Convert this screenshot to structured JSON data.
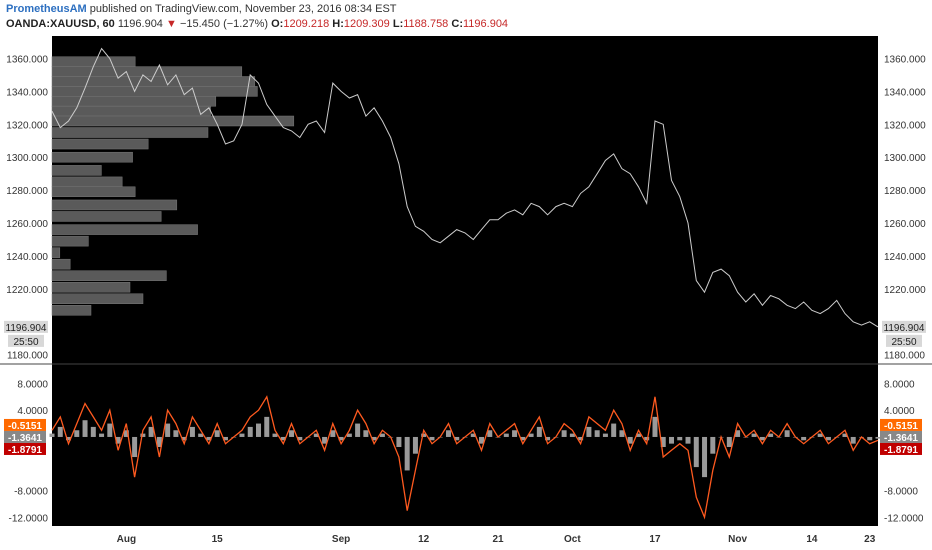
{
  "header": {
    "author": "PrometheusAM",
    "published_text": "published on TradingView.com, November 23, 2016 08:34 EST",
    "symbol": "OANDA:XAUUSD, 60",
    "last": "1196.904",
    "change": "−15.450 (−1.27%)",
    "down_arrow": "▼",
    "o_label": "O:",
    "o_value": "1209.218",
    "h_label": "H:",
    "h_value": "1209.309",
    "l_label": "L:",
    "l_value": "1188.758",
    "c_label": "C:",
    "c_value": "1196.904"
  },
  "colors": {
    "background": "#000000",
    "price_line": "#cccccc",
    "volume_profile": "#5a5a5a",
    "osc_line": "#ff5a1f",
    "osc_hist": "#9a9a9a",
    "badge_orange": "#ff6a00",
    "badge_gray": "#888888",
    "badge_red": "#c00000"
  },
  "chart_data": {
    "type": "line",
    "price_panel": {
      "yticks": [
        "1360.000",
        "1340.000",
        "1320.000",
        "1300.000",
        "1280.000",
        "1260.000",
        "1240.000",
        "1220.000",
        "1180.000"
      ],
      "ylim": [
        1178,
        1370
      ],
      "last_price_label": "1196.904",
      "countdown_label": "25:50",
      "xlim": [
        0,
        100
      ],
      "series": [
        {
          "x": [
            0,
            1,
            2,
            3,
            4,
            5,
            6,
            7,
            8,
            9,
            10,
            11,
            12,
            13,
            14,
            15,
            16,
            17,
            18,
            19,
            20,
            21,
            22,
            23,
            24,
            25,
            26,
            27,
            28,
            29,
            30,
            31,
            32,
            33,
            34,
            35,
            36,
            37,
            38,
            39,
            40,
            41,
            42,
            43,
            44,
            45,
            46,
            47,
            48,
            49,
            50,
            51,
            52,
            53,
            54,
            55,
            56,
            57,
            58,
            59,
            60,
            61,
            62,
            63,
            64,
            65,
            66,
            67,
            68,
            69,
            70,
            71,
            72,
            73,
            74,
            75,
            76,
            77,
            78,
            79,
            80,
            81,
            82,
            83,
            84,
            85,
            86,
            87,
            88,
            89,
            90,
            91,
            92,
            93,
            94,
            95,
            96,
            97,
            98,
            99,
            100
          ],
          "y": [
            1328,
            1318,
            1322,
            1330,
            1342,
            1355,
            1366,
            1360,
            1348,
            1352,
            1340,
            1350,
            1346,
            1356,
            1344,
            1350,
            1338,
            1342,
            1326,
            1330,
            1320,
            1308,
            1310,
            1320,
            1350,
            1345,
            1332,
            1325,
            1318,
            1316,
            1312,
            1320,
            1322,
            1315,
            1345,
            1340,
            1336,
            1338,
            1325,
            1330,
            1322,
            1312,
            1296,
            1270,
            1258,
            1255,
            1250,
            1248,
            1252,
            1256,
            1254,
            1250,
            1256,
            1262,
            1262,
            1266,
            1268,
            1265,
            1272,
            1270,
            1265,
            1270,
            1272,
            1270,
            1278,
            1282,
            1290,
            1298,
            1302,
            1293,
            1290,
            1282,
            1272,
            1322,
            1320,
            1286,
            1276,
            1260,
            1225,
            1218,
            1230,
            1232,
            1228,
            1218,
            1212,
            1217,
            1210,
            1216,
            1214,
            1210,
            1208,
            1212,
            1207,
            1205,
            1208,
            1213,
            1205,
            1200,
            1198,
            1200,
            1196.9
          ]
        }
      ],
      "volume_profile": [
        {
          "price": 1358,
          "length": 0.32
        },
        {
          "price": 1352,
          "length": 0.73
        },
        {
          "price": 1346,
          "length": 0.78
        },
        {
          "price": 1340,
          "length": 0.79
        },
        {
          "price": 1334,
          "length": 0.63
        },
        {
          "price": 1328,
          "length": 0.61
        },
        {
          "price": 1322,
          "length": 0.93
        },
        {
          "price": 1315,
          "length": 0.6
        },
        {
          "price": 1308,
          "length": 0.37
        },
        {
          "price": 1300,
          "length": 0.31
        },
        {
          "price": 1292,
          "length": 0.19
        },
        {
          "price": 1285,
          "length": 0.27
        },
        {
          "price": 1279,
          "length": 0.32
        },
        {
          "price": 1271,
          "length": 0.48
        },
        {
          "price": 1264,
          "length": 0.42
        },
        {
          "price": 1256,
          "length": 0.56
        },
        {
          "price": 1249,
          "length": 0.14
        },
        {
          "price": 1242,
          "length": 0.03
        },
        {
          "price": 1235,
          "length": 0.07
        },
        {
          "price": 1228,
          "length": 0.44
        },
        {
          "price": 1221,
          "length": 0.3
        },
        {
          "price": 1214,
          "length": 0.35
        },
        {
          "price": 1207,
          "length": 0.15
        }
      ]
    },
    "oscillator_panel": {
      "yticks": [
        "8.0000",
        "4.0000",
        "-8.0000",
        "-12.0000"
      ],
      "ylim": [
        -13,
        10
      ],
      "badges": [
        "-0.5151",
        "-1.3641",
        "-1.8791"
      ],
      "x": [
        0,
        1,
        2,
        3,
        4,
        5,
        6,
        7,
        8,
        9,
        10,
        11,
        12,
        13,
        14,
        15,
        16,
        17,
        18,
        19,
        20,
        21,
        22,
        23,
        24,
        25,
        26,
        27,
        28,
        29,
        30,
        31,
        32,
        33,
        34,
        35,
        36,
        37,
        38,
        39,
        40,
        41,
        42,
        43,
        44,
        45,
        46,
        47,
        48,
        49,
        50,
        51,
        52,
        53,
        54,
        55,
        56,
        57,
        58,
        59,
        60,
        61,
        62,
        63,
        64,
        65,
        66,
        67,
        68,
        69,
        70,
        71,
        72,
        73,
        74,
        75,
        76,
        77,
        78,
        79,
        80,
        81,
        82,
        83,
        84,
        85,
        86,
        87,
        88,
        89,
        90,
        91,
        92,
        93,
        94,
        95,
        96,
        97,
        98,
        99,
        100
      ],
      "line": [
        1,
        3,
        -1,
        2,
        5,
        3,
        1,
        4,
        -2,
        2,
        -6,
        1,
        3,
        -3,
        4,
        2,
        -1,
        3,
        1,
        -1,
        2,
        -1,
        0,
        1,
        3,
        4,
        6,
        1,
        -1,
        2,
        -1,
        0,
        1,
        -2,
        2,
        -1,
        1,
        4,
        2,
        -1,
        1,
        0,
        -3,
        -11,
        -5,
        1,
        -1,
        0,
        2,
        -1,
        0,
        1,
        -2,
        2,
        0,
        1,
        2,
        -1,
        1,
        3,
        -1,
        0,
        2,
        1,
        -1,
        3,
        2,
        1,
        4,
        2,
        -2,
        1,
        -1,
        6,
        -3,
        -2,
        -1,
        -2,
        -9,
        -12,
        -5,
        0,
        -3,
        2,
        0,
        1,
        -1,
        1,
        0,
        2,
        0,
        -1,
        0,
        1,
        -1,
        0,
        1,
        -2,
        0,
        -1,
        -0.5
      ],
      "hist": [
        0.5,
        1.5,
        -0.5,
        1,
        2.5,
        1.5,
        0.5,
        2,
        -1,
        1,
        -3,
        0.5,
        1.5,
        -1.5,
        2,
        1,
        -0.5,
        1.5,
        0.5,
        -0.5,
        1,
        -0.5,
        0,
        0.5,
        1.5,
        2,
        3,
        0.5,
        -0.5,
        1,
        -0.5,
        0,
        0.5,
        -1,
        1,
        -0.5,
        0.5,
        2,
        1,
        -0.5,
        0.5,
        0,
        -1.5,
        -5,
        -2.5,
        0.5,
        -0.5,
        0,
        1,
        -0.5,
        0,
        0.5,
        -1,
        1,
        0,
        0.5,
        1,
        -0.5,
        0.5,
        1.5,
        -0.5,
        0,
        1,
        0.5,
        -0.5,
        1.5,
        1,
        0.5,
        2,
        1,
        -1,
        0.5,
        -0.5,
        3,
        -1.5,
        -1,
        -0.5,
        -1,
        -4.5,
        -6,
        -2.5,
        0,
        -1.5,
        1,
        0,
        0.5,
        -0.5,
        0.5,
        0,
        1,
        0,
        -0.5,
        0,
        0.5,
        -0.5,
        0,
        0.5,
        -1,
        0,
        -0.5,
        -0.25
      ]
    },
    "x_axis": {
      "labels": [
        {
          "x": 9,
          "label": "Aug"
        },
        {
          "x": 20,
          "label": "15"
        },
        {
          "x": 35,
          "label": "Sep"
        },
        {
          "x": 45,
          "label": "12"
        },
        {
          "x": 54,
          "label": "21"
        },
        {
          "x": 63,
          "label": "Oct"
        },
        {
          "x": 73,
          "label": "17"
        },
        {
          "x": 83,
          "label": "Nov"
        },
        {
          "x": 92,
          "label": "14"
        },
        {
          "x": 99,
          "label": "23"
        }
      ]
    }
  }
}
